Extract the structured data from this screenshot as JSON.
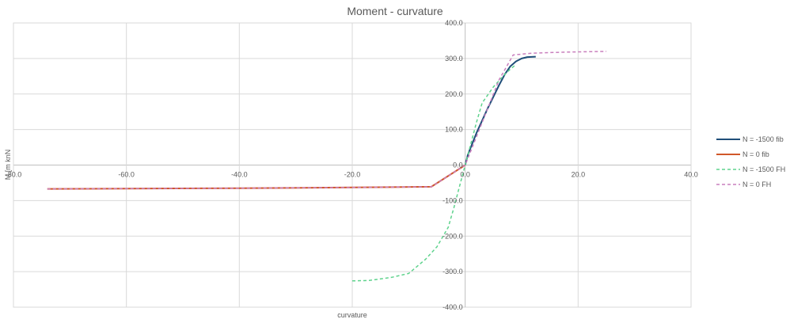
{
  "chart_data": {
    "type": "line",
    "title": "Moment  - curvature",
    "xlabel": "curvature",
    "ylabel": "M [m knN",
    "xlim": [
      -80,
      40
    ],
    "ylim": [
      -400,
      400
    ],
    "x_ticks": [
      -80,
      -60,
      -40,
      -20,
      0,
      20,
      40
    ],
    "x_tick_labels": [
      "-80.0",
      "-60.0",
      "-40.0",
      "-20.0",
      "0.0",
      "20.0",
      "40.0"
    ],
    "y_ticks": [
      400,
      300,
      200,
      100,
      0,
      -100,
      -200,
      -300,
      -400
    ],
    "y_tick_labels": [
      "400.0",
      "300.0",
      "200.0",
      "100.0",
      "0.0",
      "-100.0",
      "-200.0",
      "-300.0",
      "-400.0"
    ],
    "grid": true,
    "legend_position": "right",
    "series": [
      {
        "name": "N = -1500 fib",
        "color": "#1f4e79",
        "dash": "solid",
        "points": [
          [
            0,
            0
          ],
          [
            0.5,
            30
          ],
          [
            2,
            90
          ],
          [
            4,
            160
          ],
          [
            6,
            225
          ],
          [
            7,
            255
          ],
          [
            8,
            278
          ],
          [
            9,
            292
          ],
          [
            10,
            300
          ],
          [
            11,
            304
          ],
          [
            12.5,
            305
          ]
        ]
      },
      {
        "name": "N = 0 fib",
        "color": "#d0582a",
        "dash": "solid",
        "points": [
          [
            -74,
            -67
          ],
          [
            -40,
            -65
          ],
          [
            -20,
            -63
          ],
          [
            -6,
            -61
          ],
          [
            0,
            0
          ]
        ]
      },
      {
        "name": "N = -1500 FH",
        "color": "#5fd38d",
        "dash": "dashed",
        "points": [
          [
            -20,
            -326
          ],
          [
            -17,
            -325
          ],
          [
            -13,
            -316
          ],
          [
            -10,
            -305
          ],
          [
            -7,
            -265
          ],
          [
            -5,
            -230
          ],
          [
            -3,
            -175
          ],
          [
            -2,
            -120
          ],
          [
            -1,
            -60
          ],
          [
            0,
            0
          ],
          [
            1,
            60
          ],
          [
            2,
            120
          ],
          [
            3,
            175
          ],
          [
            5,
            220
          ],
          [
            7,
            255
          ],
          [
            8,
            270
          ],
          [
            9,
            283
          ]
        ]
      },
      {
        "name": "N = 0 FH",
        "color": "#c97fbd",
        "dash": "dashed",
        "points": [
          [
            -74,
            -67
          ],
          [
            -40,
            -65
          ],
          [
            -20,
            -63
          ],
          [
            -6,
            -61
          ],
          [
            0,
            0
          ],
          [
            3,
            120
          ],
          [
            6,
            240
          ],
          [
            8.5,
            310
          ],
          [
            12,
            315
          ],
          [
            18,
            318
          ],
          [
            25,
            320
          ]
        ]
      }
    ]
  }
}
